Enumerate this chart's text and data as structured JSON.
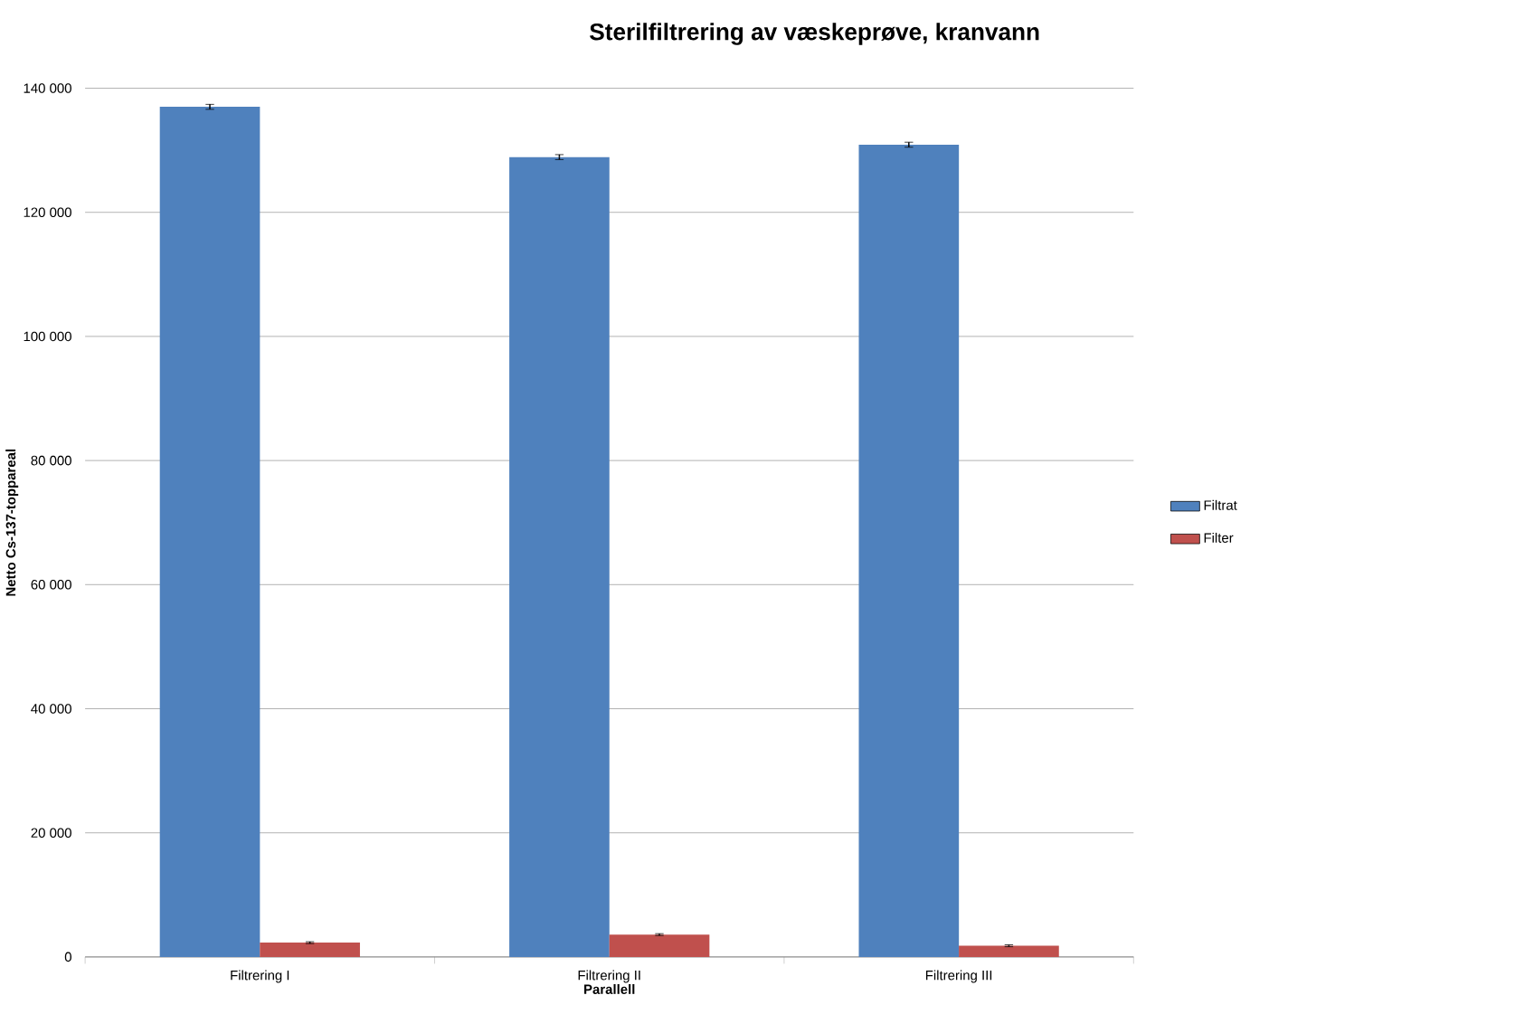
{
  "chart_data": {
    "type": "bar",
    "title": "Sterilfiltrering av væskeprøve, kranvann",
    "xlabel": "Parallell",
    "ylabel": "Netto Cs-137-toppareal",
    "categories": [
      "Filtrering I",
      "Filtrering II",
      "Filtrering III"
    ],
    "series": [
      {
        "name": "Filtrat",
        "color": "#4f81bd",
        "values": [
          137000,
          128900,
          130900
        ],
        "errors": [
          400,
          400,
          400
        ]
      },
      {
        "name": "Filter",
        "color": "#c0504d",
        "values": [
          2300,
          3600,
          1800
        ],
        "errors": [
          150,
          150,
          150
        ]
      }
    ],
    "ylim": [
      0,
      140000
    ],
    "yticks": [
      {
        "value": 0,
        "label": "0"
      },
      {
        "value": 20000,
        "label": "20 000"
      },
      {
        "value": 40000,
        "label": "40 000"
      },
      {
        "value": 60000,
        "label": "60 000"
      },
      {
        "value": 80000,
        "label": "80 000"
      },
      {
        "value": 100000,
        "label": "100 000"
      },
      {
        "value": 120000,
        "label": "120 000"
      },
      {
        "value": 140000,
        "label": "140 000"
      }
    ],
    "grid": "y",
    "legend": "right"
  }
}
